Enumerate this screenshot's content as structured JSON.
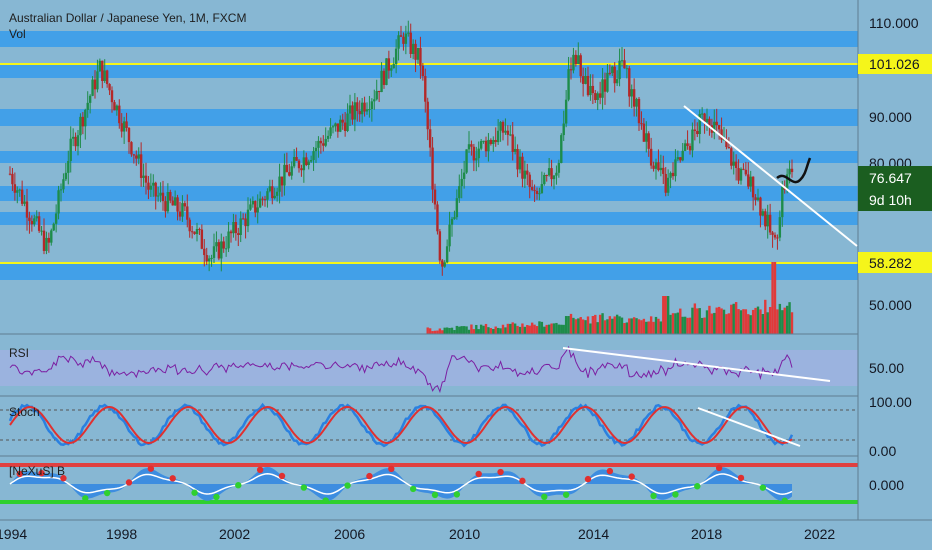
{
  "header": {
    "title": "Australian Dollar / Japanese Yen, 1M, FXCM",
    "vol_label": "Vol"
  },
  "colors": {
    "background": "#87b7d3",
    "zone": "#42a0e8",
    "yellow": "#f5f51a",
    "up": "#1e8c4a",
    "down": "#b42828",
    "rsi": "#7b1fa2",
    "stoch_k": "#2a80e0",
    "stoch_d": "#e03030",
    "tag_green": "#1b5e20",
    "tag_yellow": "#f5f51a"
  },
  "price_axis": {
    "ticks": [
      "110.000",
      "90.000",
      "80.000",
      "50.000"
    ]
  },
  "price_tags": {
    "high_level": "101.026",
    "low_level": "58.282",
    "last_price": "76.647",
    "countdown": "9d 10h"
  },
  "panes": {
    "rsi_label": "RSI",
    "rsi_tick": "50.00",
    "stoch_label": "Stoch",
    "stoch_ticks": [
      "100.00",
      "0.00"
    ],
    "nexus_label": "[NeXuS] B",
    "nexus_tick": "0.000"
  },
  "x_axis": {
    "ticks": [
      "1994",
      "1998",
      "2002",
      "2006",
      "2010",
      "2014",
      "2018",
      "2022"
    ]
  },
  "chart_data": {
    "type": "candlestick",
    "symbol": "AUDJPY",
    "timeframe": "1M",
    "x_range": [
      1994.0,
      2022.0
    ],
    "y_range": [
      40,
      115
    ],
    "horizontal_levels": [
      101.026,
      58.282
    ],
    "price_path": {
      "x": [
        1994.0,
        1995.3,
        1996.0,
        1997.1,
        1998.8,
        2000.0,
        2000.9,
        2003.0,
        2005.0,
        2006.5,
        2007.5,
        2008.1,
        2008.8,
        2009.7,
        2011.0,
        2012.0,
        2012.8,
        2013.3,
        2014.0,
        2015.0,
        2016.0,
        2016.5,
        2017.9,
        2019.0,
        2019.5,
        2020.25,
        2020.5,
        2020.8
      ],
      "y": [
        76,
        59,
        80,
        100,
        72,
        67,
        57,
        73,
        85,
        94,
        107,
        101,
        55,
        80,
        86,
        70,
        78,
        104,
        92,
        101,
        80,
        73,
        90,
        76,
        73,
        60,
        72,
        77
      ]
    },
    "trendlines": [
      {
        "pane": "price",
        "from": [
          2017.2,
          92
        ],
        "to": [
          2022.2,
          63
        ]
      },
      {
        "pane": "rsi",
        "from": [
          2013.2,
          70
        ],
        "to": [
          2021.4,
          40
        ]
      },
      {
        "pane": "stoch",
        "from": [
          2017.4,
          90
        ],
        "to": [
          2021.2,
          5
        ]
      }
    ],
    "projection": {
      "from": [
        2020.9,
        76
      ],
      "to": [
        2021.4,
        80
      ]
    },
    "indicators": [
      "RSI",
      "Stoch",
      "[NeXuS] B"
    ]
  }
}
